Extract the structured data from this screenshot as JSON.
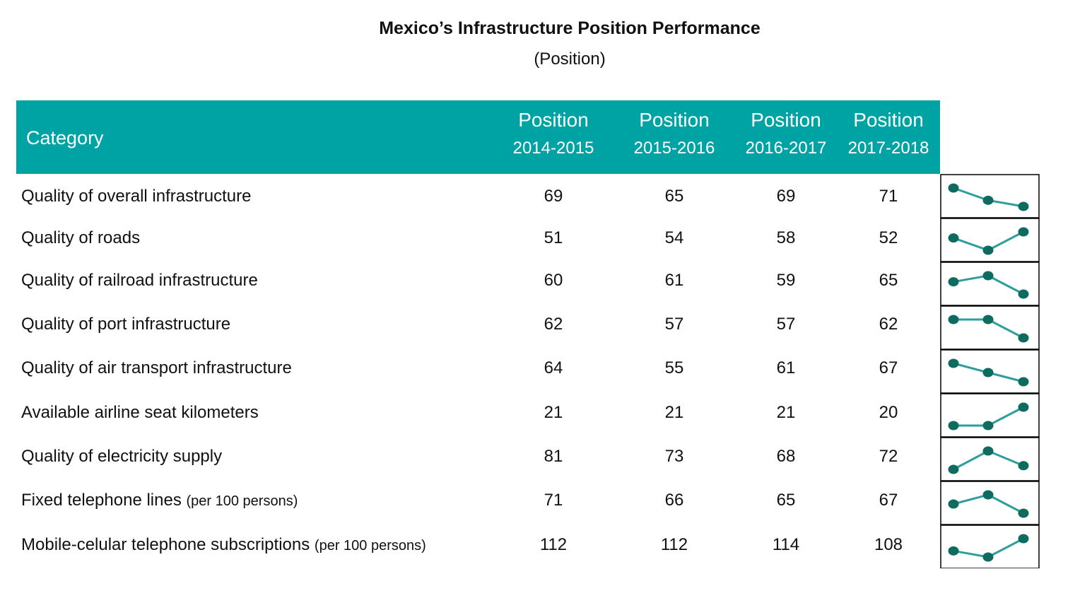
{
  "title": "Mexico’s Infrastructure Position Performance",
  "subtitle": "(Position)",
  "colors": {
    "header_bg": "#00A3A3",
    "spark_line": "#2E9D9D",
    "spark_marker": "#0E6B5F"
  },
  "chart_data": {
    "type": "table",
    "title": "Mexico’s Infrastructure Position Performance",
    "subtitle": "(Position)",
    "category_header": "Category",
    "columns": [
      {
        "line1": "Position",
        "line2": "2014-2015"
      },
      {
        "line1": "Position",
        "line2": "2015-2016"
      },
      {
        "line1": "Position",
        "line2": "2016-2017"
      },
      {
        "line1": "Position",
        "line2": "2017-2018"
      }
    ],
    "rows": [
      {
        "category": "Quality of overall infrastructure",
        "note": "",
        "values": [
          69,
          65,
          69,
          71
        ]
      },
      {
        "category": "Quality of roads",
        "note": "",
        "values": [
          51,
          54,
          58,
          52
        ]
      },
      {
        "category": "Quality of railroad infrastructure",
        "note": "",
        "values": [
          60,
          61,
          59,
          65
        ]
      },
      {
        "category": "Quality of port infrastructure",
        "note": "",
        "values": [
          62,
          57,
          57,
          62
        ]
      },
      {
        "category": "Quality of air transport infrastructure",
        "note": "",
        "values": [
          64,
          55,
          61,
          67
        ]
      },
      {
        "category": "Available airline seat kilometers",
        "note": "",
        "values": [
          21,
          21,
          21,
          20
        ]
      },
      {
        "category": "Quality of electricity supply",
        "note": "",
        "values": [
          81,
          73,
          68,
          72
        ]
      },
      {
        "category": "Fixed telephone lines",
        "note": "(per 100 persons)",
        "values": [
          71,
          66,
          65,
          67
        ]
      },
      {
        "category": "Mobile-celular telephone subscriptions",
        "note": "(per 100 persons)",
        "values": [
          112,
          112,
          114,
          108
        ]
      }
    ],
    "sparklines": {
      "series_columns": [
        1,
        2,
        3
      ],
      "inverted": true,
      "marker": "circle"
    }
  }
}
